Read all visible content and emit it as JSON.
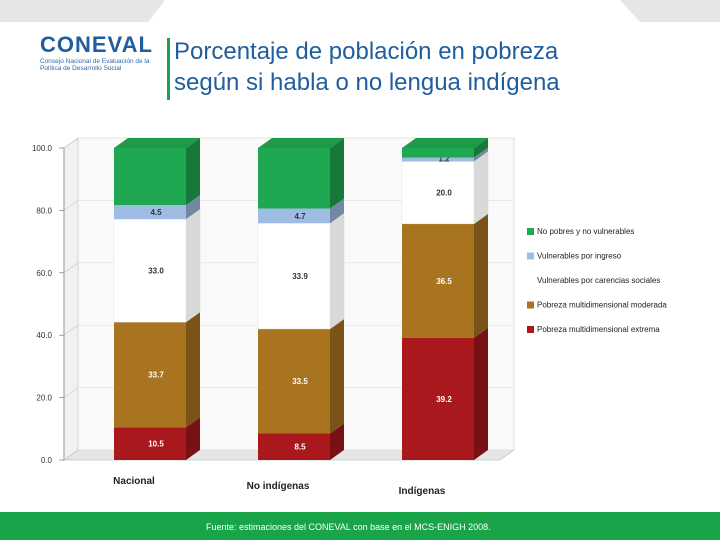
{
  "header": {
    "logo_word": "CONEVAL",
    "logo_subtitle": "Consejo Nacional de Evaluación de la Política de Desarrollo Social",
    "title_line1": "Porcentaje de población en pobreza",
    "title_line2": "según si habla o no lengua indígena"
  },
  "colors": {
    "accent_green": "#1aa44a",
    "brand_blue": "#1f5e9e"
  },
  "chart_data": {
    "type": "bar",
    "stacked": true,
    "categories": [
      "Nacional",
      "No indígenas",
      "Indígenas"
    ],
    "ylim": [
      0,
      100
    ],
    "yticks": [
      "0.0",
      "20.0",
      "40.0",
      "60.0",
      "80.0",
      "100.0"
    ],
    "series": [
      {
        "name": "Pobreza multidimensional extrema",
        "color": "#a8181c",
        "values": [
          10.5,
          8.5,
          39.2
        ],
        "labels": [
          "10.5",
          "8.5",
          "39.2"
        ]
      },
      {
        "name": "Pobreza multidimensional moderada",
        "color": "#a8741f",
        "values": [
          33.7,
          33.5,
          36.5
        ],
        "labels": [
          "33.7",
          "33.5",
          "36.5"
        ]
      },
      {
        "name": "Vulnerables por carencias sociales",
        "color": "#ffffff",
        "values": [
          33.0,
          33.9,
          20.0
        ],
        "labels": [
          "33.0",
          "33.9",
          "20.0"
        ]
      },
      {
        "name": "Vulnerables por ingreso",
        "color": "#9fbde4",
        "values": [
          4.5,
          4.7,
          1.2
        ],
        "labels": [
          "4.5",
          "4.7",
          "1.2"
        ]
      },
      {
        "name": "No pobres y no vulnerables",
        "color": "#1fa851",
        "values": [
          18.3,
          19.4,
          3.1
        ],
        "labels": [
          "",
          "",
          ""
        ]
      }
    ],
    "legend_order": [
      "No pobres y no vulnerables",
      "Vulnerables por ingreso",
      "Vulnerables por carencias sociales",
      "Pobreza multidimensional moderada",
      "Pobreza multidimensional extrema"
    ],
    "legend_position": "right",
    "xlabel": "",
    "ylabel": ""
  },
  "footer": {
    "source": "Fuente: estimaciones del CONEVAL con base en el MCS-ENIGH 2008."
  }
}
